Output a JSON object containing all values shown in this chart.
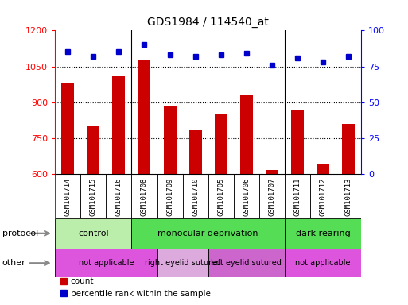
{
  "title": "GDS1984 / 114540_at",
  "samples": [
    "GSM101714",
    "GSM101715",
    "GSM101716",
    "GSM101708",
    "GSM101709",
    "GSM101710",
    "GSM101705",
    "GSM101706",
    "GSM101707",
    "GSM101711",
    "GSM101712",
    "GSM101713"
  ],
  "counts": [
    980,
    800,
    1010,
    1075,
    882,
    782,
    852,
    930,
    615,
    870,
    640,
    810
  ],
  "percentiles": [
    85,
    82,
    85,
    90,
    83,
    82,
    83,
    84,
    76,
    81,
    78,
    82
  ],
  "ylim_left": [
    600,
    1200
  ],
  "ylim_right": [
    0,
    100
  ],
  "yticks_left": [
    600,
    750,
    900,
    1050,
    1200
  ],
  "yticks_right": [
    0,
    25,
    50,
    75,
    100
  ],
  "grid_lines": [
    750,
    900,
    1050
  ],
  "bar_color": "#cc0000",
  "dot_color": "#0000cc",
  "label_bg": "#cccccc",
  "proto_groups": [
    {
      "label": "control",
      "start": 0,
      "end": 3,
      "color": "#bbeeaa"
    },
    {
      "label": "monocular deprivation",
      "start": 3,
      "end": 9,
      "color": "#55dd55"
    },
    {
      "label": "dark rearing",
      "start": 9,
      "end": 12,
      "color": "#55dd55"
    }
  ],
  "other_groups": [
    {
      "label": "not applicable",
      "start": 0,
      "end": 4,
      "color": "#dd55dd"
    },
    {
      "label": "right eyelid sutured",
      "start": 4,
      "end": 6,
      "color": "#ddaadd"
    },
    {
      "label": "left eyelid sutured",
      "start": 6,
      "end": 9,
      "color": "#cc66cc"
    },
    {
      "label": "not applicable",
      "start": 9,
      "end": 12,
      "color": "#dd55dd"
    }
  ],
  "legend_count_label": "count",
  "legend_pct_label": "percentile rank within the sample",
  "protocol_label": "protocol",
  "other_label": "other",
  "group_seps": [
    2.5,
    8.5
  ]
}
